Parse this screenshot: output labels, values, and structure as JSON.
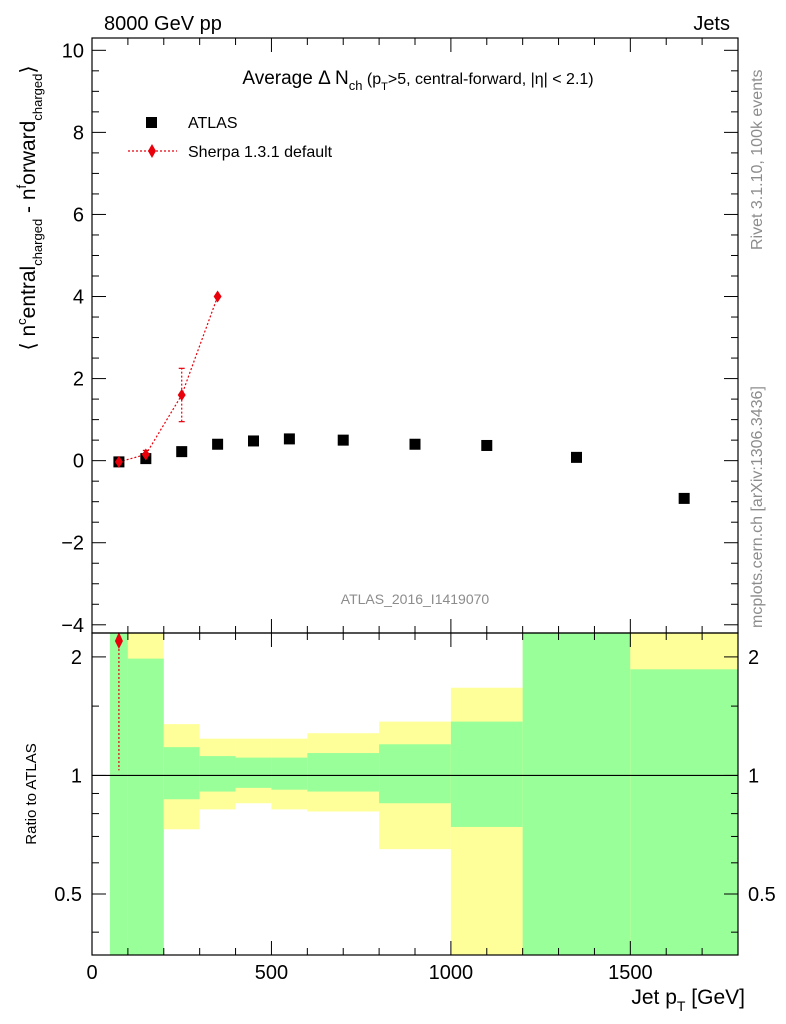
{
  "header": {
    "left": "8000 GeV pp",
    "right": "Jets"
  },
  "side_labels": {
    "rivet": "Rivet 3.1.10,  100k events",
    "mcplots": "mcplots.cern.ch [arXiv:1306.3436]"
  },
  "watermark": "ATLAS_2016_I1419070",
  "colors": {
    "data": "#000000",
    "mc": "#e8000b",
    "band_inner": "#99ff99",
    "band_outer": "#ffff99"
  },
  "chart_data": [
    {
      "type": "scatter",
      "title": "Average Δ N",
      "title_sub": "ch",
      "title_paren_open": " (p",
      "title_paren_sub": "T",
      "title_rest": ">5, central-forward, |η| < 2.1)",
      "ylabel": {
        "open": "⟨ n",
        "sup1": "c",
        "mid1": "entral",
        "sub1": "charged",
        "mid2": " - n",
        "sup2": "f",
        "mid3": "orward",
        "sub2": "charged",
        "close": "⟩"
      },
      "xlim": [
        0,
        1800
      ],
      "ylim": [
        -4.2,
        10.3
      ],
      "yticks": [
        -4,
        -2,
        0,
        2,
        4,
        6,
        8,
        10
      ],
      "ytick_labels": [
        "−4",
        "−2",
        "0",
        "2",
        "4",
        "6",
        "8",
        "10"
      ],
      "legend_placement": "top-left",
      "series": [
        {
          "name": "ATLAS",
          "marker": "square",
          "x": [
            75,
            150,
            250,
            350,
            450,
            550,
            700,
            900,
            1100,
            1350,
            1650
          ],
          "y": [
            -0.03,
            0.05,
            0.22,
            0.4,
            0.48,
            0.53,
            0.5,
            0.4,
            0.37,
            0.08,
            -0.92
          ]
        },
        {
          "name": "Sherpa 1.3.1 default",
          "marker": "diamond",
          "line": "dotted",
          "x": [
            75,
            150,
            250,
            350
          ],
          "y": [
            -0.03,
            0.15,
            1.6,
            4.0
          ],
          "yerr_low": [
            0.05,
            0.1,
            0.65,
            0.05
          ],
          "yerr_high": [
            0.05,
            0.1,
            0.65,
            0.05
          ]
        }
      ]
    },
    {
      "type": "area",
      "ylabel": "Ratio to ATLAS",
      "xlabel_main": "Jet p",
      "xlabel_sub": "T",
      "xlabel_unit": " [GeV]",
      "xlim": [
        0,
        1800
      ],
      "ylim": [
        0.35,
        2.3
      ],
      "xticks": [
        0,
        500,
        1000,
        1500
      ],
      "xtick_labels": [
        "0",
        "500",
        "1000",
        "1500"
      ],
      "yticks": [
        0.5,
        1,
        2
      ],
      "ytick_labels": [
        "0.5",
        "1",
        "2"
      ],
      "reference_line": 1,
      "bins": [
        {
          "lo": 50,
          "hi": 100,
          "inner_lo": 0.35,
          "inner_hi": 2.3,
          "outer_lo": 0.35,
          "outer_hi": 2.3
        },
        {
          "lo": 100,
          "hi": 200,
          "inner_lo": 0.35,
          "inner_hi": 1.98,
          "outer_lo": 0.35,
          "outer_hi": 2.3
        },
        {
          "lo": 200,
          "hi": 300,
          "inner_lo": 0.87,
          "inner_hi": 1.18,
          "outer_lo": 0.73,
          "outer_hi": 1.35
        },
        {
          "lo": 300,
          "hi": 400,
          "inner_lo": 0.91,
          "inner_hi": 1.12,
          "outer_lo": 0.82,
          "outer_hi": 1.24
        },
        {
          "lo": 400,
          "hi": 500,
          "inner_lo": 0.93,
          "inner_hi": 1.11,
          "outer_lo": 0.85,
          "outer_hi": 1.24
        },
        {
          "lo": 500,
          "hi": 600,
          "inner_lo": 0.92,
          "inner_hi": 1.11,
          "outer_lo": 0.82,
          "outer_hi": 1.24
        },
        {
          "lo": 600,
          "hi": 800,
          "inner_lo": 0.91,
          "inner_hi": 1.14,
          "outer_lo": 0.81,
          "outer_hi": 1.28
        },
        {
          "lo": 800,
          "hi": 1000,
          "inner_lo": 0.85,
          "inner_hi": 1.2,
          "outer_lo": 0.65,
          "outer_hi": 1.37
        },
        {
          "lo": 1000,
          "hi": 1200,
          "inner_lo": 0.74,
          "inner_hi": 1.37,
          "outer_lo": 0.35,
          "outer_hi": 1.67
        },
        {
          "lo": 1200,
          "hi": 1500,
          "inner_lo": 0.35,
          "inner_hi": 2.3,
          "outer_lo": 0.35,
          "outer_hi": 2.3
        },
        {
          "lo": 1500,
          "hi": 1800,
          "inner_lo": 0.35,
          "inner_hi": 1.86,
          "outer_lo": 0.35,
          "outer_hi": 2.3
        }
      ],
      "mc_ratio": {
        "x": [
          75
        ],
        "y": [
          2.3
        ],
        "yerr_low": [
          1.27
        ]
      }
    }
  ]
}
